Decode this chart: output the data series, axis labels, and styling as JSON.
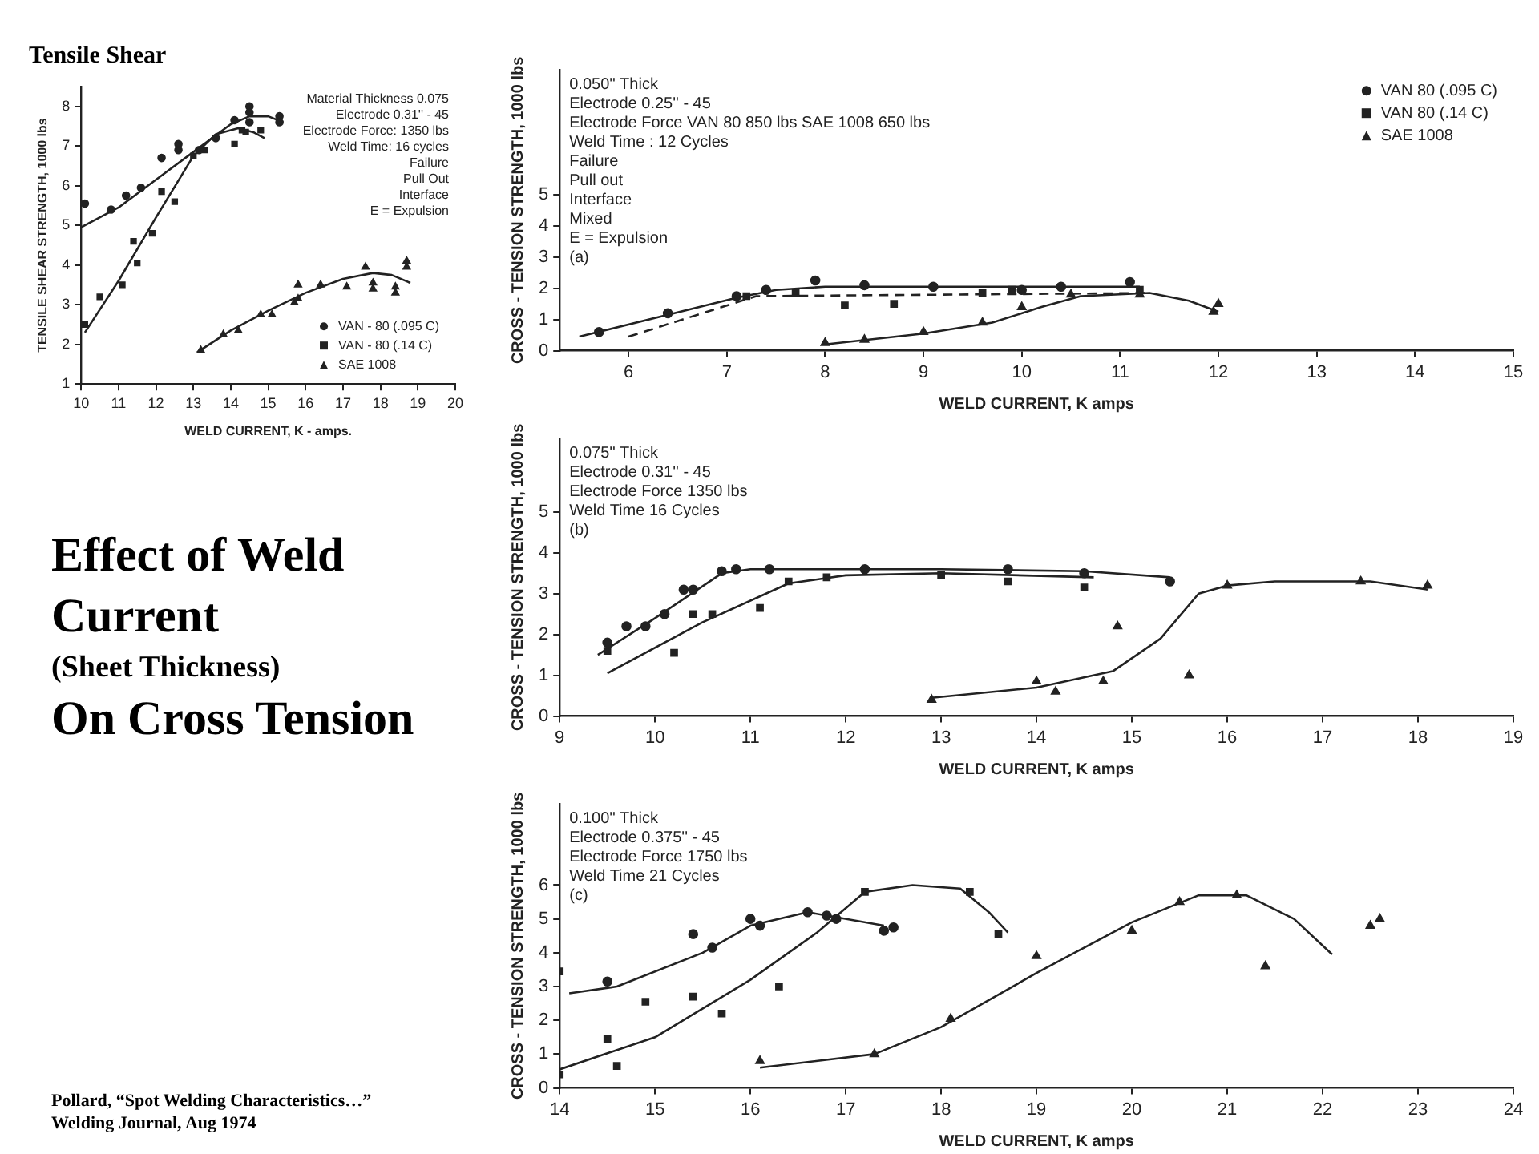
{
  "chart_data": [
    {
      "type": "scatter",
      "title": "Tensile Shear",
      "xlabel": "WELD CURRENT, K - amps.",
      "ylabel": "TENSILE SHEAR STRENGTH, 1000 lbs",
      "xlim": [
        10,
        20
      ],
      "xticks": [
        10,
        11,
        12,
        13,
        14,
        15,
        16,
        17,
        18,
        19,
        20
      ],
      "ylim": [
        1,
        8.5
      ],
      "yticks": [
        1,
        2,
        3,
        4,
        5,
        6,
        7,
        8
      ],
      "grid": false,
      "legend": "bottom right",
      "annotations": [
        "Material Thickness 0.075",
        "Electrode 0.31'' - 45",
        "Electrode Force: 1350 lbs",
        "Weld Time: 16 cycles",
        "Failure",
        "Pull Out",
        "Interface",
        "E = Expulsion"
      ],
      "series": [
        {
          "name": "VAN - 80 (.095 C)",
          "type": "scatter",
          "marker": "circle",
          "color": "#222222",
          "x": [
            10.1,
            10.8,
            11.2,
            11.6,
            12.15,
            12.6,
            12.6,
            13.15,
            13.6,
            14.1,
            14.5,
            14.5,
            14.5,
            15.3,
            15.3
          ],
          "values": [
            5.55,
            5.4,
            5.75,
            5.95,
            6.7,
            7.05,
            6.9,
            6.9,
            7.2,
            7.65,
            8.0,
            7.85,
            7.6,
            7.6,
            7.75
          ]
        },
        {
          "name": "VAN - 80 (.14 C)",
          "type": "scatter",
          "marker": "square",
          "color": "#222222",
          "x": [
            10.1,
            10.5,
            11.1,
            11.4,
            11.5,
            11.9,
            12.15,
            12.5,
            13.0,
            13.3,
            14.1,
            14.3,
            14.4,
            14.8
          ],
          "values": [
            2.5,
            3.2,
            3.5,
            4.6,
            4.05,
            4.8,
            5.85,
            5.6,
            6.75,
            6.9,
            7.05,
            7.4,
            7.35,
            7.4
          ]
        },
        {
          "name": "SAE 1008",
          "type": "scatter",
          "marker": "triangle",
          "color": "#222222",
          "x": [
            13.2,
            13.8,
            14.2,
            14.8,
            15.1,
            15.7,
            15.8,
            15.8,
            16.4,
            17.1,
            17.6,
            17.8,
            17.8,
            18.4,
            18.4,
            18.7,
            18.7
          ],
          "values": [
            1.85,
            2.25,
            2.35,
            2.75,
            2.75,
            3.05,
            3.15,
            3.5,
            3.5,
            3.45,
            3.95,
            3.55,
            3.4,
            3.45,
            3.3,
            4.1,
            3.95
          ]
        },
        {
          "type": "line",
          "marker": "none",
          "color": "#222222",
          "x": [
            10,
            11,
            12,
            13,
            14,
            14.5,
            15,
            15.4
          ],
          "values": [
            4.95,
            5.45,
            6.15,
            6.85,
            7.55,
            7.75,
            7.75,
            7.6
          ]
        },
        {
          "type": "line",
          "marker": "none",
          "color": "#222222",
          "x": [
            10.1,
            11,
            12,
            13,
            13.6,
            14.2,
            14.6,
            14.9
          ],
          "values": [
            2.3,
            3.6,
            5.2,
            6.75,
            7.3,
            7.45,
            7.35,
            7.2
          ]
        },
        {
          "type": "line",
          "marker": "none",
          "color": "#222222",
          "x": [
            13.1,
            14,
            15,
            16,
            17,
            17.8,
            18.3,
            18.8
          ],
          "values": [
            1.8,
            2.35,
            2.85,
            3.3,
            3.65,
            3.8,
            3.75,
            3.55
          ]
        }
      ]
    },
    {
      "type": "other",
      "title": "Effect of Weld Current",
      "subtitle": "(Sheet Thickness)",
      "annotations": [
        "On Cross Tension",
        "Pollard, “Spot Welding Characteristics…”",
        "Welding Journal, Aug 1974"
      ]
    },
    {
      "type": "scatter",
      "xlabel": "WELD CURRENT, K amps",
      "ylabel": "CROSS - TENSION STRENGTH, 1000 lbs",
      "xlim": [
        5.3,
        15
      ],
      "xticks": [
        6,
        7,
        8,
        9,
        10,
        11,
        12,
        13,
        14,
        15
      ],
      "ylim": [
        0,
        9
      ],
      "yticks": [
        0,
        1,
        2,
        3,
        4,
        5
      ],
      "grid": false,
      "legend": "top right",
      "annotations": [
        "0.050'' Thick",
        "Electrode 0.25'' - 45",
        "Electrode Force VAN 80 850 lbs SAE 1008 650 lbs",
        "Weld Time : 12 Cycles",
        "Failure",
        "Pull out",
        "Interface",
        "Mixed",
        "E = Expulsion",
        "(a)"
      ],
      "series": [
        {
          "name": "VAN 80 (.095 C)",
          "type": "scatter",
          "marker": "circle",
          "color": "#222222",
          "x": [
            5.7,
            6.4,
            7.1,
            7.4,
            7.9,
            8.4,
            9.1,
            10.0,
            10.4,
            11.1
          ],
          "values": [
            0.6,
            1.2,
            1.75,
            1.95,
            2.25,
            2.1,
            2.05,
            1.95,
            2.05,
            2.2
          ]
        },
        {
          "name": "VAN 80 (.14 C)",
          "type": "scatter",
          "marker": "square",
          "color": "#222222",
          "x": [
            7.2,
            7.7,
            8.2,
            8.7,
            9.6,
            9.9,
            11.2
          ],
          "values": [
            1.75,
            1.85,
            1.45,
            1.5,
            1.85,
            1.95,
            1.95
          ]
        },
        {
          "name": "SAE 1008",
          "type": "scatter",
          "marker": "triangle",
          "color": "#222222",
          "x": [
            8.0,
            8.4,
            9.0,
            9.6,
            10.0,
            10.5,
            11.2,
            11.95,
            12.0
          ],
          "values": [
            0.25,
            0.35,
            0.6,
            0.9,
            1.4,
            1.8,
            1.8,
            1.25,
            1.5
          ]
        },
        {
          "type": "line",
          "marker": "none",
          "color": "#222222",
          "x": [
            5.5,
            7.1,
            7.5,
            8,
            11.2
          ],
          "values": [
            0.45,
            1.7,
            1.95,
            2.05,
            2.05
          ]
        },
        {
          "type": "line",
          "marker": "none",
          "line_style": "dashed",
          "color": "#222222",
          "x": [
            6,
            7.3,
            11.3
          ],
          "values": [
            0.45,
            1.75,
            1.85
          ]
        },
        {
          "type": "line",
          "marker": "none",
          "color": "#222222",
          "x": [
            8,
            9,
            9.7,
            10.2,
            10.6,
            11.3,
            11.7,
            12
          ],
          "values": [
            0.2,
            0.55,
            0.9,
            1.4,
            1.75,
            1.85,
            1.6,
            1.25
          ]
        }
      ]
    },
    {
      "type": "scatter",
      "xlabel": "WELD CURRENT, K amps",
      "ylabel": "CROSS - TENSION STRENGTH, 1000 lbs",
      "xlim": [
        9,
        19
      ],
      "xticks": [
        9,
        10,
        11,
        12,
        13,
        14,
        15,
        16,
        17,
        18,
        19
      ],
      "ylim": [
        0,
        6.8
      ],
      "yticks": [
        0,
        1,
        2,
        3,
        4,
        5
      ],
      "grid": false,
      "annotations": [
        "0.075'' Thick",
        "Electrode 0.31'' - 45",
        "Electrode Force 1350 lbs",
        "Weld Time 16 Cycles",
        "(b)"
      ],
      "series": [
        {
          "type": "scatter",
          "marker": "circle",
          "color": "#222222",
          "x": [
            9.5,
            9.7,
            9.9,
            10.1,
            10.3,
            10.4,
            10.7,
            10.85,
            11.2,
            12.2,
            13.7,
            14.5,
            15.4
          ],
          "values": [
            1.8,
            2.2,
            2.2,
            2.5,
            3.1,
            3.1,
            3.55,
            3.6,
            3.6,
            3.6,
            3.6,
            3.5,
            3.3
          ]
        },
        {
          "type": "scatter",
          "marker": "square",
          "color": "#222222",
          "x": [
            9.5,
            10.2,
            10.4,
            10.6,
            11.1,
            11.4,
            11.8,
            13.0,
            13.7,
            14.5
          ],
          "values": [
            1.6,
            1.55,
            2.5,
            2.5,
            2.65,
            3.3,
            3.4,
            3.45,
            3.3,
            3.15
          ]
        },
        {
          "type": "scatter",
          "marker": "triangle",
          "color": "#222222",
          "x": [
            12.9,
            14.0,
            14.2,
            14.7,
            14.85,
            15.6,
            16.0,
            17.4,
            18.1
          ],
          "values": [
            0.4,
            0.85,
            0.6,
            0.85,
            2.2,
            1.0,
            3.2,
            3.3,
            3.2
          ]
        },
        {
          "type": "line",
          "marker": "none",
          "color": "#222222",
          "x": [
            9.4,
            10,
            10.7,
            11,
            13,
            14.5,
            15.4
          ],
          "values": [
            1.5,
            2.4,
            3.5,
            3.6,
            3.6,
            3.55,
            3.4
          ]
        },
        {
          "type": "line",
          "marker": "none",
          "color": "#222222",
          "x": [
            9.5,
            10.5,
            11.4,
            12,
            13,
            14.6
          ],
          "values": [
            1.05,
            2.3,
            3.25,
            3.45,
            3.5,
            3.4
          ]
        },
        {
          "type": "line",
          "marker": "none",
          "color": "#222222",
          "x": [
            12.9,
            14,
            14.8,
            15.3,
            15.7,
            16,
            16.5,
            17.5,
            18.1
          ],
          "values": [
            0.45,
            0.7,
            1.1,
            1.9,
            3.0,
            3.2,
            3.3,
            3.3,
            3.1
          ]
        }
      ]
    },
    {
      "type": "scatter",
      "xlabel": "WELD CURRENT, K amps",
      "ylabel": "CROSS - TENSION STRENGTH, 1000 lbs",
      "xlim": [
        14,
        24
      ],
      "xticks": [
        14,
        15,
        16,
        17,
        18,
        19,
        20,
        21,
        22,
        23,
        24
      ],
      "ylim": [
        0,
        8.4
      ],
      "yticks": [
        0,
        1,
        2,
        3,
        4,
        5,
        6
      ],
      "grid": false,
      "annotations": [
        "0.100'' Thick",
        "Electrode 0.375'' - 45",
        "Electrode Force 1750 lbs",
        "Weld Time 21 Cycles",
        "(c)"
      ],
      "series": [
        {
          "type": "scatter",
          "marker": "circle",
          "color": "#222222",
          "x": [
            14.5,
            15.4,
            15.6,
            16.0,
            16.1,
            16.6,
            16.8,
            16.9,
            17.4,
            17.5
          ],
          "values": [
            3.15,
            4.55,
            4.15,
            5.0,
            4.8,
            5.2,
            5.1,
            5.0,
            4.65,
            4.75
          ]
        },
        {
          "type": "scatter",
          "marker": "square",
          "color": "#222222",
          "x": [
            14.0,
            14.0,
            14.5,
            14.6,
            14.9,
            15.4,
            15.7,
            16.3,
            17.2,
            18.3,
            18.6
          ],
          "values": [
            3.45,
            0.4,
            1.45,
            0.65,
            2.55,
            2.7,
            2.2,
            3.0,
            5.8,
            5.8,
            4.55
          ]
        },
        {
          "type": "scatter",
          "marker": "triangle",
          "color": "#222222",
          "x": [
            16.1,
            17.3,
            18.1,
            19.0,
            20.0,
            20.5,
            21.1,
            21.4,
            22.5,
            22.6
          ],
          "values": [
            0.8,
            1.0,
            2.05,
            3.9,
            4.65,
            5.5,
            5.7,
            3.6,
            4.8,
            5.0
          ]
        },
        {
          "type": "line",
          "marker": "none",
          "color": "#222222",
          "x": [
            14.1,
            14.6,
            15.5,
            16,
            16.6,
            17.4
          ],
          "values": [
            2.8,
            3.0,
            4.0,
            4.8,
            5.2,
            4.8
          ]
        },
        {
          "type": "line",
          "marker": "none",
          "color": "#222222",
          "x": [
            14,
            15,
            16,
            16.7,
            17.2,
            17.7,
            18.2,
            18.5,
            18.7
          ],
          "values": [
            0.55,
            1.5,
            3.2,
            4.6,
            5.8,
            6.0,
            5.9,
            5.2,
            4.6
          ]
        },
        {
          "type": "line",
          "marker": "none",
          "color": "#222222",
          "x": [
            16.1,
            17.3,
            18,
            19,
            20,
            20.7,
            21.2,
            21.7,
            22.1
          ],
          "values": [
            0.6,
            1.0,
            1.8,
            3.4,
            4.9,
            5.7,
            5.7,
            5.0,
            3.95
          ]
        }
      ]
    }
  ]
}
